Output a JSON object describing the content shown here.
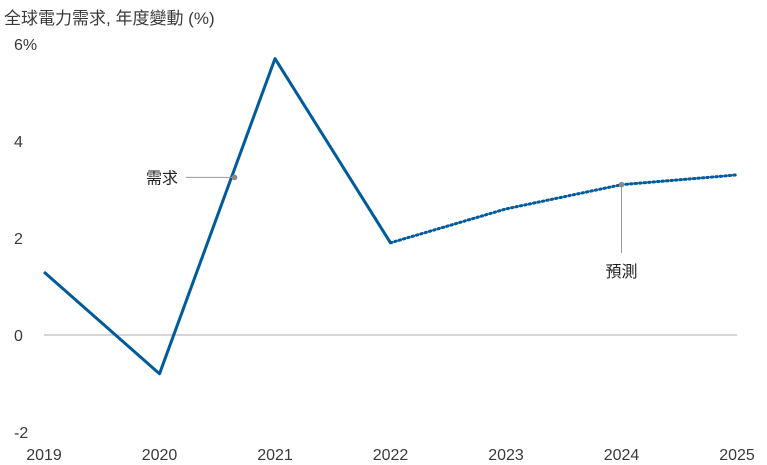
{
  "chart_data": {
    "type": "line",
    "title": "全球電力需求, 年度變動 (%)",
    "x": [
      "2019",
      "2020",
      "2021",
      "2022",
      "2023",
      "2024",
      "2025"
    ],
    "ytick_labels": [
      "6%",
      "4",
      "2",
      "0",
      "-2"
    ],
    "ylim": [
      -2,
      6
    ],
    "grid": false,
    "series": [
      {
        "name": "需求",
        "style": "solid",
        "color": "#005b9a",
        "points": [
          {
            "x": "2019",
            "y": 1.3
          },
          {
            "x": "2020",
            "y": -0.8
          },
          {
            "x": "2021",
            "y": 5.7
          },
          {
            "x": "2022",
            "y": 1.9
          }
        ]
      },
      {
        "name": "預測",
        "style": "dotted",
        "color": "#005b9a",
        "points": [
          {
            "x": "2022",
            "y": 1.9
          },
          {
            "x": "2023",
            "y": 2.6
          },
          {
            "x": "2024",
            "y": 3.1
          },
          {
            "x": "2025",
            "y": 3.3
          }
        ]
      }
    ],
    "annotations": [
      {
        "text": "需求",
        "at": {
          "x": "2020.65",
          "y": 3.25
        }
      },
      {
        "text": "預測",
        "at": {
          "x": "2024",
          "y": 3.1
        }
      }
    ]
  }
}
